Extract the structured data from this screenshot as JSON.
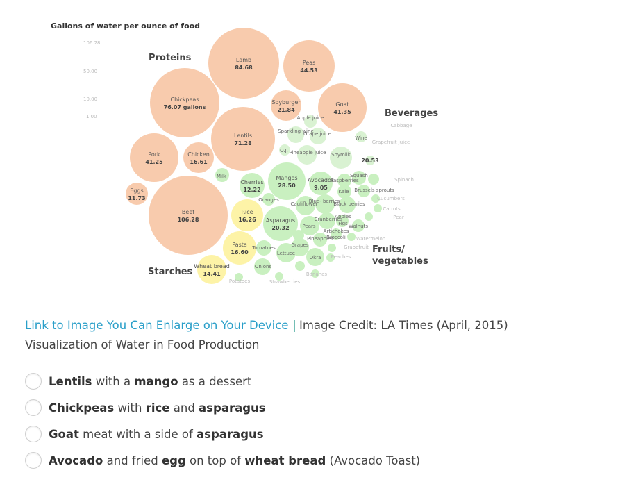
{
  "figure": {
    "title": "Gallons of water per ounce of food",
    "scale_labels": [
      "106.28",
      "50.00",
      "10.00",
      "1.00"
    ],
    "colors": {
      "protein": "#f8cbad",
      "starch": "#fdf3a7",
      "produce": "#c9f0c0",
      "beverage": "#d9f2d2"
    },
    "group_labels": {
      "proteins": "Proteins",
      "beverages": "Beverages",
      "starches": "Starches",
      "fruits_vegetables": [
        "Fruits/",
        "vegetables"
      ]
    },
    "bubbles": [
      {
        "name": "Lamb",
        "value": "84.68",
        "group": "protein"
      },
      {
        "name": "Peas",
        "value": "44.53",
        "group": "protein"
      },
      {
        "name": "Chickpeas",
        "value": "76.07 gallons",
        "group": "protein"
      },
      {
        "name": "Soyburger",
        "value": "21.84",
        "group": "protein"
      },
      {
        "name": "Goat",
        "value": "41.35",
        "group": "protein"
      },
      {
        "name": "Lentils",
        "value": "71.28",
        "group": "protein"
      },
      {
        "name": "Pork",
        "value": "41.25",
        "group": "protein"
      },
      {
        "name": "Chicken",
        "value": "16.61",
        "group": "protein"
      },
      {
        "name": "Eggs",
        "value": "11.73",
        "group": "protein"
      },
      {
        "name": "Beef",
        "value": "106.28",
        "group": "protein"
      },
      {
        "name": "Rice",
        "value": "16.26",
        "group": "starch"
      },
      {
        "name": "Pasta",
        "value": "16.60",
        "group": "starch"
      },
      {
        "name": "Wheat bread",
        "value": "14.41",
        "group": "starch"
      },
      {
        "name": "Cherries",
        "value": "12.22",
        "group": "produce"
      },
      {
        "name": "Mangos",
        "value": "28.50",
        "group": "produce"
      },
      {
        "name": "Avocados",
        "value": "9.05",
        "group": "produce"
      },
      {
        "name": "Asparagus",
        "value": "20.32",
        "group": "produce"
      }
    ],
    "small_labels": [
      "Apple juice",
      "Sparkling wine",
      "Grape juice",
      "Wine",
      "O.J.",
      "Pineapple juice",
      "Soymilk",
      "20.53",
      "Milk",
      "Raspberries",
      "Squash",
      "Spinach",
      "Kale",
      "Brussels sprouts",
      "Oranges",
      "Cauliflower",
      "Blue- berries",
      "Black berries",
      "Cucumbers",
      "Carrots",
      "Cranberries",
      "Apples",
      "Figs",
      "Pears",
      "Artichokes",
      "Walnuts",
      "Pear",
      "Pineapples",
      "Broccoli",
      "Watermelon",
      "Tomatoes",
      "Grapes",
      "Grapefruit",
      "Lettuce",
      "Okra",
      "Peaches",
      "Onions",
      "Bananas",
      "Potatoes",
      "Strawberries",
      "Cabbage",
      "Grapefruit juice",
      "Beer"
    ]
  },
  "caption": {
    "link_text": "Link to Image You Can Enlarge on Your Device",
    "separator": "|",
    "credit": "Image Credit: LA Times (April, 2015)",
    "subtitle": "Visualization of Water in Food Production"
  },
  "options": [
    {
      "id": "opt1",
      "parts": [
        {
          "t": "Lentils",
          "b": true
        },
        {
          "t": " with a ",
          "b": false
        },
        {
          "t": "mango",
          "b": true
        },
        {
          "t": " as a dessert",
          "b": false
        }
      ]
    },
    {
      "id": "opt2",
      "parts": [
        {
          "t": "Chickpeas",
          "b": true
        },
        {
          "t": " with ",
          "b": false
        },
        {
          "t": "rice",
          "b": true
        },
        {
          "t": " and ",
          "b": false
        },
        {
          "t": "asparagus",
          "b": true
        }
      ]
    },
    {
      "id": "opt3",
      "parts": [
        {
          "t": "Goat",
          "b": true
        },
        {
          "t": " meat with a side of ",
          "b": false
        },
        {
          "t": "asparagus",
          "b": true
        }
      ]
    },
    {
      "id": "opt4",
      "parts": [
        {
          "t": "Avocado",
          "b": true
        },
        {
          "t": " and fried ",
          "b": false
        },
        {
          "t": "egg",
          "b": true
        },
        {
          "t": " on top of ",
          "b": false
        },
        {
          "t": "wheat bread",
          "b": true
        },
        {
          "t": " (Avocado Toast)",
          "b": false
        }
      ]
    }
  ]
}
